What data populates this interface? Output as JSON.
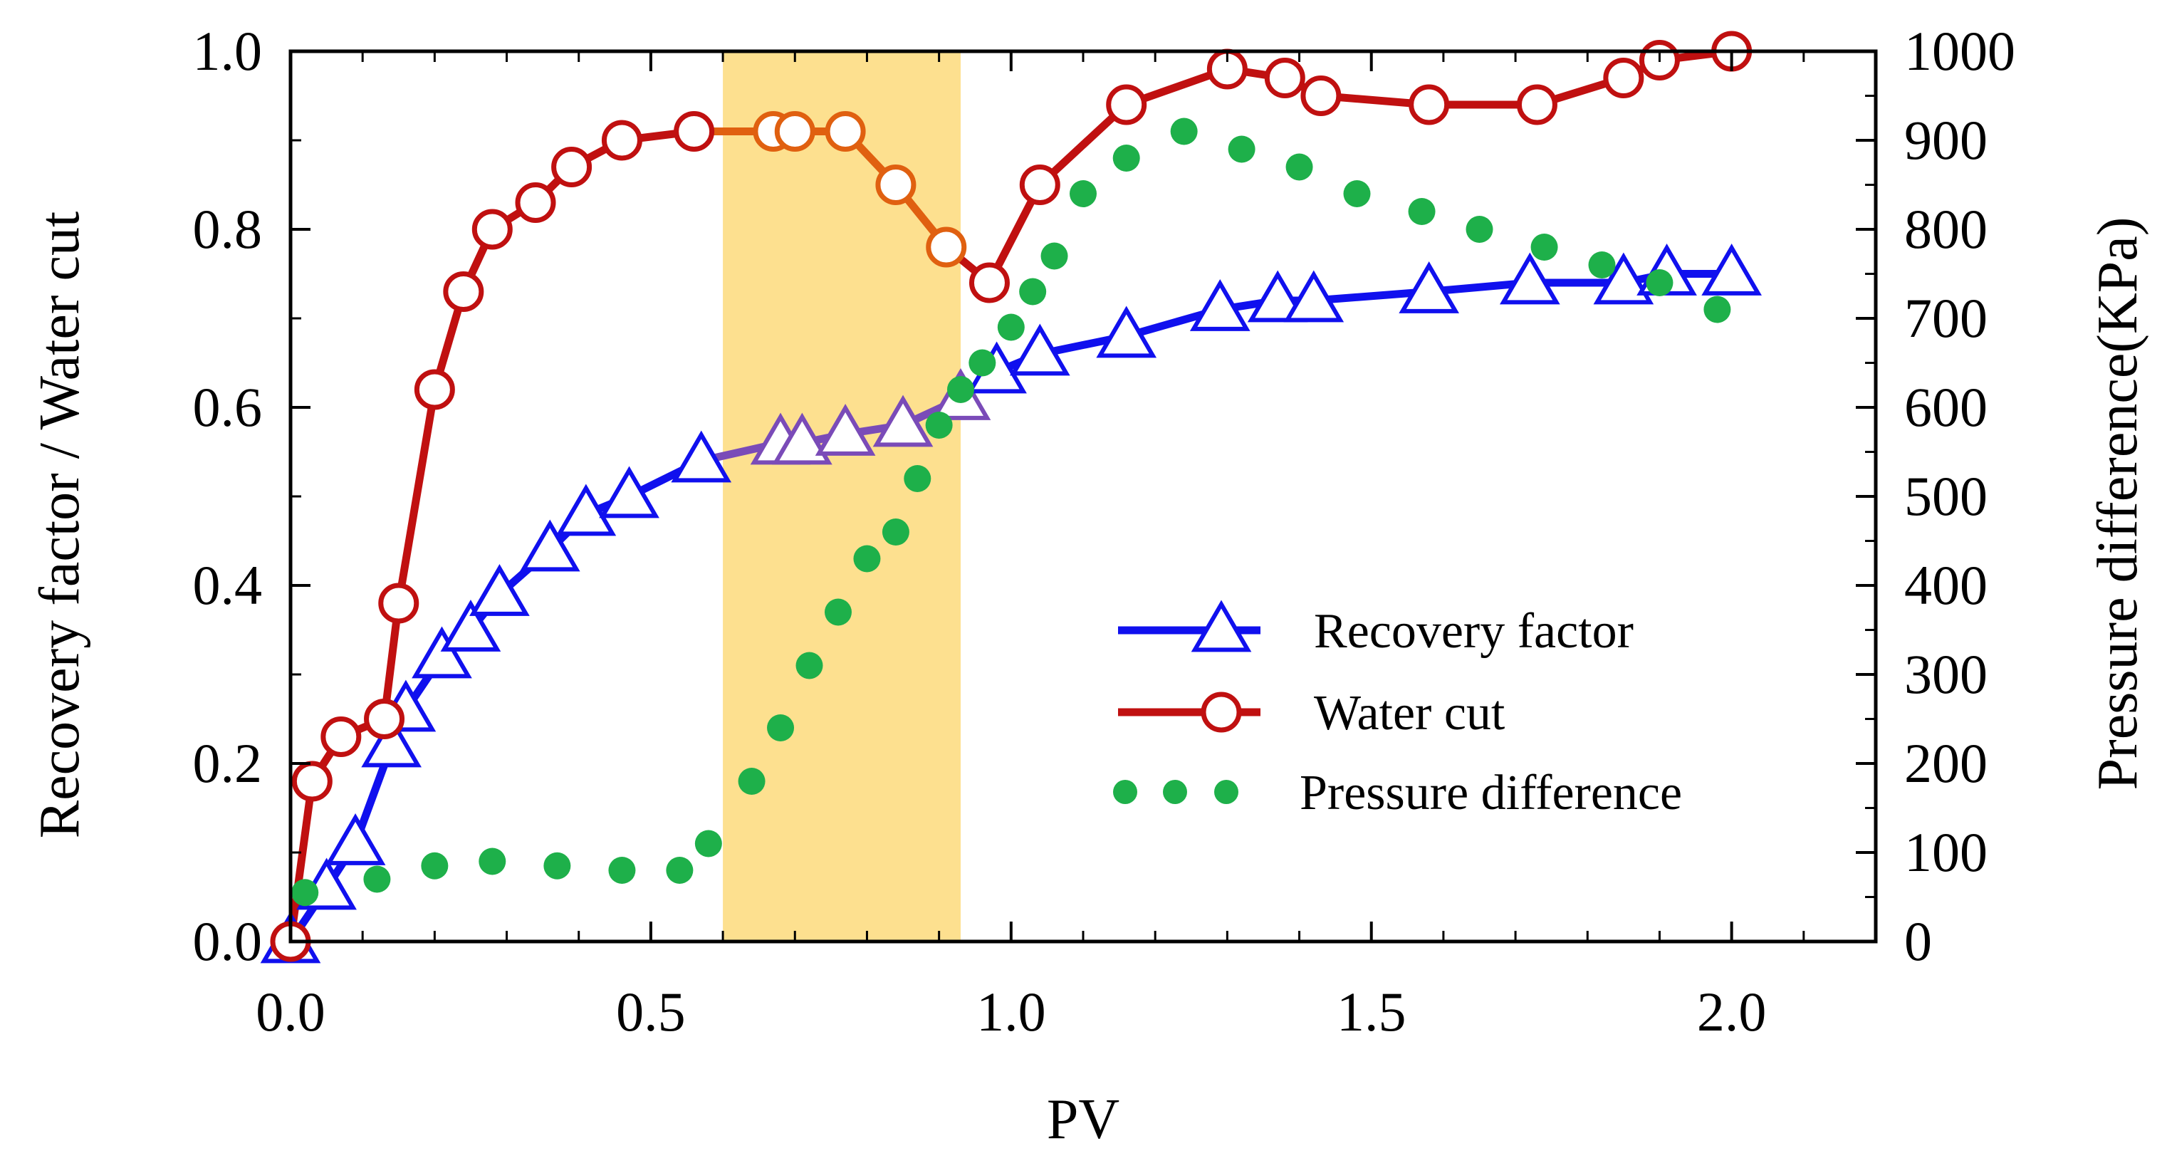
{
  "chart_data": {
    "type": "line",
    "title": "",
    "xlabel": "PV",
    "ylabel": "Recovery factor / Water cut",
    "y2label": "Pressure difference(KPa)",
    "xlim": [
      0.0,
      2.2
    ],
    "ylim": [
      0.0,
      1.0
    ],
    "y2lim": [
      0,
      1000
    ],
    "x_ticks": [
      0.0,
      0.5,
      1.0,
      1.5,
      2.0
    ],
    "x_tick_labels": [
      "0.0",
      "0.5",
      "1.0",
      "1.5",
      "2.0"
    ],
    "y_ticks": [
      0.0,
      0.2,
      0.4,
      0.6,
      0.8,
      1.0
    ],
    "y_tick_labels": [
      "0.0",
      "0.2",
      "0.4",
      "0.6",
      "0.8",
      "1.0"
    ],
    "y2_ticks": [
      0,
      100,
      200,
      300,
      400,
      500,
      600,
      700,
      800,
      900,
      1000
    ],
    "y2_tick_labels": [
      "0",
      "100",
      "200",
      "300",
      "400",
      "500",
      "600",
      "700",
      "800",
      "900",
      "1000"
    ],
    "highlight_range": [
      0.6,
      0.93
    ],
    "legend_position": "lower-right",
    "series": [
      {
        "name": "Recovery factor",
        "axis": "left",
        "style": "line-triangle",
        "color": "#1010ee",
        "highlight_color": "#7a4bb8",
        "x": [
          0.0,
          0.05,
          0.09,
          0.14,
          0.16,
          0.21,
          0.25,
          0.29,
          0.36,
          0.41,
          0.47,
          0.57,
          0.68,
          0.71,
          0.77,
          0.85,
          0.93,
          0.98,
          1.04,
          1.16,
          1.29,
          1.37,
          1.42,
          1.58,
          1.72,
          1.85,
          1.91,
          2.0
        ],
        "values": [
          0.0,
          0.06,
          0.11,
          0.22,
          0.26,
          0.32,
          0.35,
          0.39,
          0.44,
          0.48,
          0.5,
          0.54,
          0.56,
          0.56,
          0.57,
          0.58,
          0.61,
          0.64,
          0.66,
          0.68,
          0.71,
          0.72,
          0.72,
          0.73,
          0.74,
          0.74,
          0.75,
          0.75
        ]
      },
      {
        "name": "Water cut",
        "axis": "left",
        "style": "line-circle",
        "color": "#c01010",
        "highlight_color": "#e06010",
        "x": [
          0.0,
          0.03,
          0.07,
          0.13,
          0.15,
          0.2,
          0.24,
          0.28,
          0.34,
          0.39,
          0.46,
          0.56,
          0.67,
          0.7,
          0.77,
          0.84,
          0.91,
          0.97,
          1.04,
          1.16,
          1.3,
          1.38,
          1.43,
          1.58,
          1.73,
          1.85,
          1.9,
          2.0
        ],
        "values": [
          0.0,
          0.18,
          0.23,
          0.25,
          0.38,
          0.62,
          0.73,
          0.8,
          0.83,
          0.87,
          0.9,
          0.91,
          0.91,
          0.91,
          0.91,
          0.85,
          0.78,
          0.74,
          0.85,
          0.94,
          0.98,
          0.97,
          0.95,
          0.94,
          0.94,
          0.97,
          0.99,
          1.0
        ]
      },
      {
        "name": "Pressure difference",
        "axis": "right",
        "style": "dots",
        "color": "#1eb04a",
        "x": [
          0.02,
          0.12,
          0.2,
          0.28,
          0.37,
          0.46,
          0.54,
          0.58,
          0.64,
          0.68,
          0.72,
          0.76,
          0.8,
          0.84,
          0.87,
          0.9,
          0.93,
          0.96,
          1.0,
          1.03,
          1.06,
          1.1,
          1.16,
          1.24,
          1.32,
          1.4,
          1.48,
          1.57,
          1.65,
          1.74,
          1.82,
          1.9,
          1.98
        ],
        "values": [
          55,
          70,
          85,
          90,
          85,
          80,
          80,
          110,
          180,
          240,
          310,
          370,
          430,
          460,
          520,
          580,
          620,
          650,
          690,
          730,
          770,
          840,
          880,
          910,
          890,
          870,
          840,
          820,
          800,
          780,
          760,
          740,
          710
        ]
      }
    ]
  }
}
